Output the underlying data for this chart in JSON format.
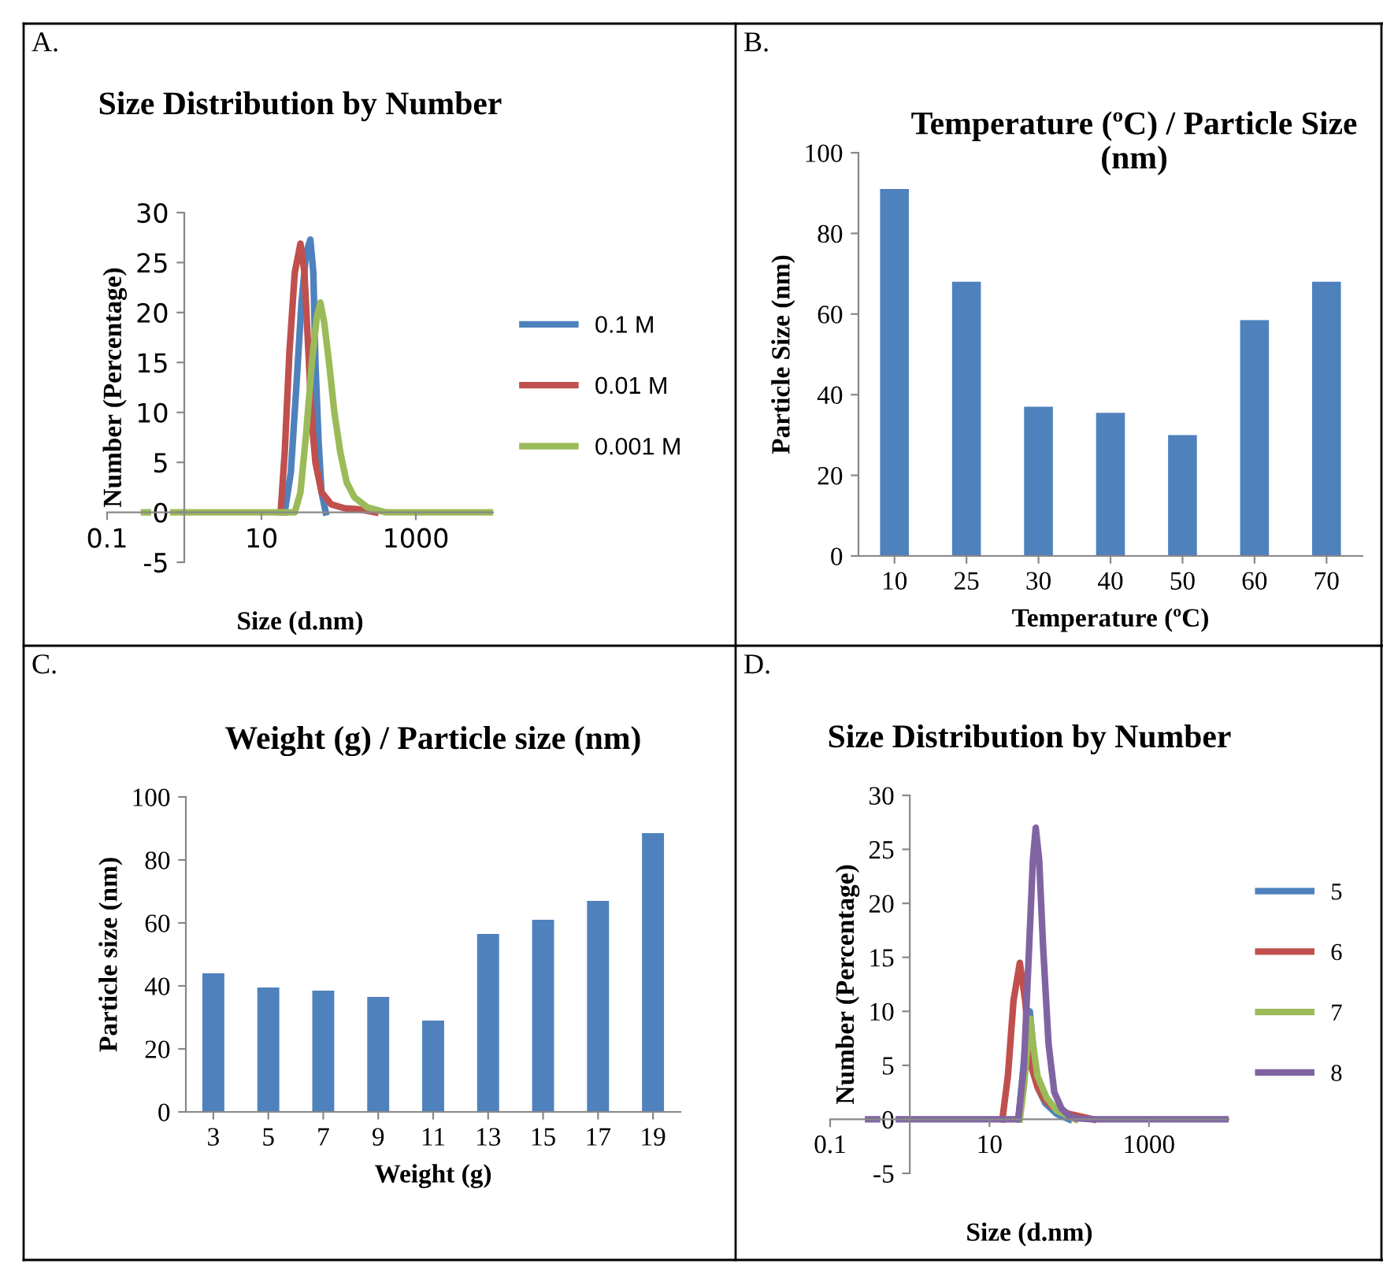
{
  "chart_data": [
    {
      "type": "line",
      "title": "Size Distribution by Number",
      "xlabel": "Size (d.nm)",
      "ylabel": "Number (Percentage)",
      "annotations": [
        "A."
      ],
      "log": "x",
      "xlim": [
        0.1,
        10000
      ],
      "xticks": [
        0.1,
        10,
        1000
      ],
      "ylim": [
        -5,
        30
      ],
      "yticks": [
        -5,
        0,
        5,
        10,
        15,
        20,
        25,
        30
      ],
      "legend": "right",
      "grid": false,
      "marker": "none",
      "line_style": "solid",
      "series": [
        {
          "name": "0.1 M",
          "color": "#4f81bd",
          "x": [
            20,
            24,
            28,
            33,
            38,
            43,
            47,
            50,
            55,
            60,
            68
          ],
          "values": [
            0,
            4,
            12,
            21,
            26,
            27.3,
            24,
            15,
            7,
            2,
            0
          ]
        },
        {
          "name": "0.01 M",
          "color": "#c0504d",
          "x": [
            17.7,
            20,
            23,
            27,
            32,
            36,
            40,
            45,
            50,
            60,
            80,
            120,
            180,
            300
          ],
          "values": [
            0,
            6,
            16,
            24,
            26.9,
            24,
            17,
            9,
            5,
            2,
            0.8,
            0.4,
            0.3,
            0
          ]
        },
        {
          "name": "0.001 M",
          "color": "#9bbb59",
          "x": [
            0.3,
            1,
            5,
            20,
            27,
            32,
            38,
            45,
            52,
            58,
            65,
            75,
            88,
            105,
            127,
            160,
            235,
            400,
            1000,
            10000
          ],
          "values": [
            0,
            0,
            0,
            0,
            0,
            2,
            8,
            15,
            19.5,
            21,
            19,
            15,
            10,
            6,
            3,
            1.5,
            0.5,
            0,
            0,
            0
          ]
        }
      ]
    },
    {
      "type": "bar",
      "title": "Temperature (ºC) / Particle Size (nm)",
      "xlabel": "Temperature (ºC)",
      "ylabel": "Particle Size (nm)",
      "annotations": [
        "B."
      ],
      "categories": [
        "10",
        "25",
        "30",
        "40",
        "50",
        "60",
        "70"
      ],
      "values": [
        91,
        68,
        37,
        35.5,
        30,
        58.5,
        68
      ],
      "color": "#4f81bd",
      "ylim": [
        0,
        100
      ],
      "yticks": [
        0,
        20,
        40,
        60,
        80,
        100
      ],
      "grid": false
    },
    {
      "type": "bar",
      "title": "Weight (g) / Particle size (nm)",
      "xlabel": "Weight (g)",
      "ylabel": "Particle size (nm)",
      "annotations": [
        "C."
      ],
      "categories": [
        "3",
        "5",
        "7",
        "9",
        "11",
        "13",
        "15",
        "17",
        "19"
      ],
      "values": [
        44,
        39.5,
        38.5,
        36.5,
        29,
        56.5,
        61,
        67,
        88.5
      ],
      "color": "#4f81bd",
      "ylim": [
        0,
        100
      ],
      "yticks": [
        0,
        20,
        40,
        60,
        80,
        100
      ],
      "grid": false
    },
    {
      "type": "line",
      "title": "Size Distribution by Number",
      "xlabel": "Size (d.nm)",
      "ylabel": "Number (Percentage)",
      "annotations": [
        "D."
      ],
      "log": "x",
      "xlim": [
        0.1,
        10000
      ],
      "xticks": [
        0.1,
        10,
        1000
      ],
      "ylim": [
        -5,
        30
      ],
      "yticks": [
        -5,
        0,
        5,
        10,
        15,
        20,
        25,
        30
      ],
      "legend": "right",
      "grid": false,
      "marker": "none",
      "line_style": "solid",
      "series": [
        {
          "name": "5",
          "color": "#4f81bd",
          "x": [
            23,
            26,
            29,
            32,
            35,
            40,
            50,
            70,
            100
          ],
          "values": [
            0,
            4,
            8,
            10,
            7,
            3,
            1.5,
            0.5,
            0
          ]
        },
        {
          "name": "6",
          "color": "#c0504d",
          "x": [
            14.5,
            17,
            20,
            24,
            28,
            33,
            40,
            47,
            60,
            100,
            200
          ],
          "values": [
            0,
            4,
            11,
            14.5,
            11,
            5,
            3,
            2,
            1.2,
            0.5,
            0
          ]
        },
        {
          "name": "7",
          "color": "#9bbb59",
          "x": [
            24,
            27,
            30,
            32.5,
            35,
            40,
            52,
            70,
            120
          ],
          "values": [
            0,
            3,
            7,
            9.3,
            7,
            4,
            2,
            0.8,
            0
          ]
        },
        {
          "name": "8",
          "color": "#8064a2",
          "x": [
            0.3,
            1,
            5,
            20,
            23,
            27,
            31,
            35,
            38,
            42,
            47,
            55,
            65,
            80,
            100,
            120,
            200,
            1000,
            10000
          ],
          "values": [
            0,
            0,
            0,
            0,
            0,
            5,
            15,
            24,
            27,
            24,
            16,
            7,
            2.5,
            1,
            0.3,
            0.1,
            0,
            0,
            0
          ]
        }
      ]
    }
  ]
}
